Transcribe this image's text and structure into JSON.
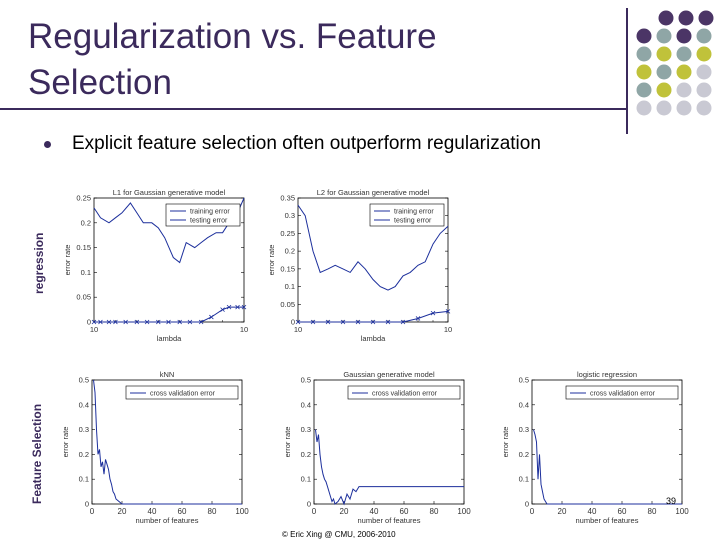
{
  "slide": {
    "title_line1": "Regularization vs. Feature",
    "title_line2": "Selection",
    "bullet": "Explicit feature selection often outperform regularization",
    "side_label_top": "regression",
    "side_label_bottom": "Feature Selection",
    "slide_number": "39",
    "footer": "© Eric Xing @ CMU, 2006-2010",
    "colors": {
      "title": "#3b2a5c",
      "series": "#1c2f9c",
      "dot_purple": "#4b3566",
      "dot_teal": "#8fa6a6",
      "dot_olive": "#c0c23a",
      "dot_gray": "#c9c9d3"
    }
  },
  "chart_data": [
    {
      "type": "line",
      "title": "L1 for Gaussian generative model",
      "xlabel": "lambda",
      "ylabel": "error rate",
      "xscale": "log",
      "xlim": [
        0.001,
        10000
      ],
      "xtick_labels": [
        "10",
        "10"
      ],
      "ylim": [
        0,
        0.25
      ],
      "yticks": [
        0,
        0.05,
        0.1,
        0.15,
        0.2,
        0.25
      ],
      "ytick_labels": [
        "0",
        "0.05",
        "0.1",
        "0.15",
        "0.2",
        "0.25"
      ],
      "legend": "top-right",
      "series": [
        {
          "name": "training error",
          "marker": "x",
          "x": [
            0.001,
            0.002,
            0.005,
            0.01,
            0.03,
            0.1,
            0.3,
            1,
            3,
            10,
            30,
            100,
            300,
            1000,
            2000,
            5000,
            10000
          ],
          "values": [
            0,
            0,
            0,
            0,
            0,
            0,
            0,
            0,
            0,
            0,
            0,
            0,
            0.01,
            0.025,
            0.03,
            0.03,
            0.03
          ]
        },
        {
          "name": "testing error",
          "marker": "none",
          "x": [
            0.001,
            0.002,
            0.005,
            0.01,
            0.02,
            0.05,
            0.1,
            0.2,
            0.5,
            1,
            2,
            5,
            10,
            20,
            50,
            100,
            200,
            500,
            1000,
            2000,
            5000,
            10000
          ],
          "values": [
            0.23,
            0.21,
            0.2,
            0.21,
            0.22,
            0.24,
            0.22,
            0.2,
            0.2,
            0.19,
            0.17,
            0.13,
            0.12,
            0.16,
            0.15,
            0.16,
            0.17,
            0.18,
            0.18,
            0.2,
            0.22,
            0.25
          ]
        }
      ]
    },
    {
      "type": "line",
      "title": "L2 for Gaussian generative model",
      "xlabel": "lambda",
      "ylabel": "error rate",
      "xscale": "log",
      "xlim": [
        1e-14,
        0.0001
      ],
      "xtick_labels": [
        "10",
        "10"
      ],
      "ylim": [
        0,
        0.35
      ],
      "yticks": [
        0,
        0.05,
        0.1,
        0.15,
        0.2,
        0.25,
        0.3,
        0.35
      ],
      "ytick_labels": [
        "0",
        "0.05",
        "0.1",
        "0.15",
        "0.2",
        "0.25",
        "0.3",
        "0.35"
      ],
      "legend": "top-right",
      "series": [
        {
          "name": "training error",
          "marker": "x",
          "x": [
            1e-14,
            1e-13,
            1e-12,
            1e-11,
            1e-10,
            1e-09,
            1e-08,
            1e-07,
            1e-06,
            1e-05,
            0.0001
          ],
          "values": [
            0,
            0,
            0,
            0,
            0,
            0,
            0,
            0,
            0.01,
            0.025,
            0.03
          ]
        },
        {
          "name": "testing error",
          "marker": "none",
          "x": [
            1e-14,
            3e-14,
            1e-13,
            3e-13,
            1e-12,
            3e-12,
            1e-11,
            3e-11,
            1e-10,
            3e-10,
            1e-09,
            3e-09,
            1e-08,
            3e-08,
            1e-07,
            3e-07,
            1e-06,
            3e-06,
            1e-05,
            3e-05,
            0.0001
          ],
          "values": [
            0.33,
            0.3,
            0.2,
            0.14,
            0.15,
            0.16,
            0.15,
            0.14,
            0.17,
            0.15,
            0.12,
            0.1,
            0.09,
            0.1,
            0.13,
            0.14,
            0.16,
            0.17,
            0.22,
            0.25,
            0.27
          ]
        }
      ]
    },
    {
      "type": "line",
      "title": "kNN",
      "xlabel": "number of features",
      "ylabel": "error rate",
      "xlim": [
        0,
        100
      ],
      "xticks": [
        0,
        20,
        40,
        60,
        80,
        100
      ],
      "ylim": [
        0,
        0.5
      ],
      "yticks": [
        0,
        0.1,
        0.2,
        0.3,
        0.4,
        0.5
      ],
      "ytick_labels": [
        "0",
        "0.1",
        "0.2",
        "0.3",
        "0.4",
        "0.5"
      ],
      "legend": "top-right",
      "series": [
        {
          "name": "cross validation error",
          "x": [
            1,
            2,
            3,
            4,
            5,
            6,
            7,
            8,
            9,
            10,
            11,
            12,
            13,
            14,
            15,
            16,
            18,
            20,
            25,
            30,
            35,
            40,
            50,
            60,
            70,
            80,
            90,
            100
          ],
          "values": [
            0.5,
            0.45,
            0.3,
            0.2,
            0.22,
            0.15,
            0.17,
            0.12,
            0.18,
            0.16,
            0.14,
            0.1,
            0.08,
            0.05,
            0.04,
            0.02,
            0.01,
            0,
            0,
            0,
            0,
            0,
            0,
            0,
            0,
            0,
            0,
            0
          ]
        }
      ]
    },
    {
      "type": "line",
      "title": "Gaussian generative model",
      "xlabel": "number of features",
      "ylabel": "error rate",
      "xlim": [
        0,
        100
      ],
      "xticks": [
        0,
        20,
        40,
        60,
        80,
        100
      ],
      "ylim": [
        0,
        0.5
      ],
      "yticks": [
        0,
        0.1,
        0.2,
        0.3,
        0.4,
        0.5
      ],
      "ytick_labels": [
        "0",
        "0.1",
        "0.2",
        "0.3",
        "0.4",
        "0.5"
      ],
      "legend": "top-right",
      "series": [
        {
          "name": "cross validation error",
          "x": [
            1,
            2,
            3,
            4,
            5,
            6,
            7,
            8,
            9,
            10,
            11,
            12,
            13,
            14,
            16,
            18,
            20,
            22,
            24,
            26,
            28,
            30,
            40,
            50,
            60,
            70,
            80,
            90,
            100
          ],
          "values": [
            0.3,
            0.25,
            0.28,
            0.2,
            0.15,
            0.12,
            0.1,
            0.09,
            0.07,
            0.05,
            0.03,
            0.01,
            0.02,
            0,
            0.01,
            0.03,
            0,
            0.04,
            0.02,
            0.06,
            0.05,
            0.07,
            0.07,
            0.07,
            0.07,
            0.07,
            0.07,
            0.07,
            0.07
          ]
        }
      ]
    },
    {
      "type": "line",
      "title": "logistic regression",
      "xlabel": "number of features",
      "ylabel": "error rate",
      "xlim": [
        0,
        100
      ],
      "xticks": [
        0,
        20,
        40,
        60,
        80,
        100
      ],
      "ylim": [
        0,
        0.5
      ],
      "yticks": [
        0,
        0.1,
        0.2,
        0.3,
        0.4,
        0.5
      ],
      "ytick_labels": [
        "0",
        "0.1",
        "0.2",
        "0.3",
        "0.4",
        "0.5"
      ],
      "legend": "top-right",
      "series": [
        {
          "name": "cross validation error",
          "x": [
            1,
            2,
            3,
            4,
            5,
            6,
            7,
            8,
            9,
            10,
            12,
            15,
            20,
            30,
            40,
            50,
            60,
            70,
            80,
            90,
            100
          ],
          "values": [
            0.3,
            0.28,
            0.25,
            0.1,
            0.2,
            0.08,
            0.05,
            0.02,
            0.01,
            0,
            0,
            0,
            0,
            0,
            0,
            0,
            0,
            0,
            0,
            0,
            0
          ]
        }
      ]
    }
  ]
}
